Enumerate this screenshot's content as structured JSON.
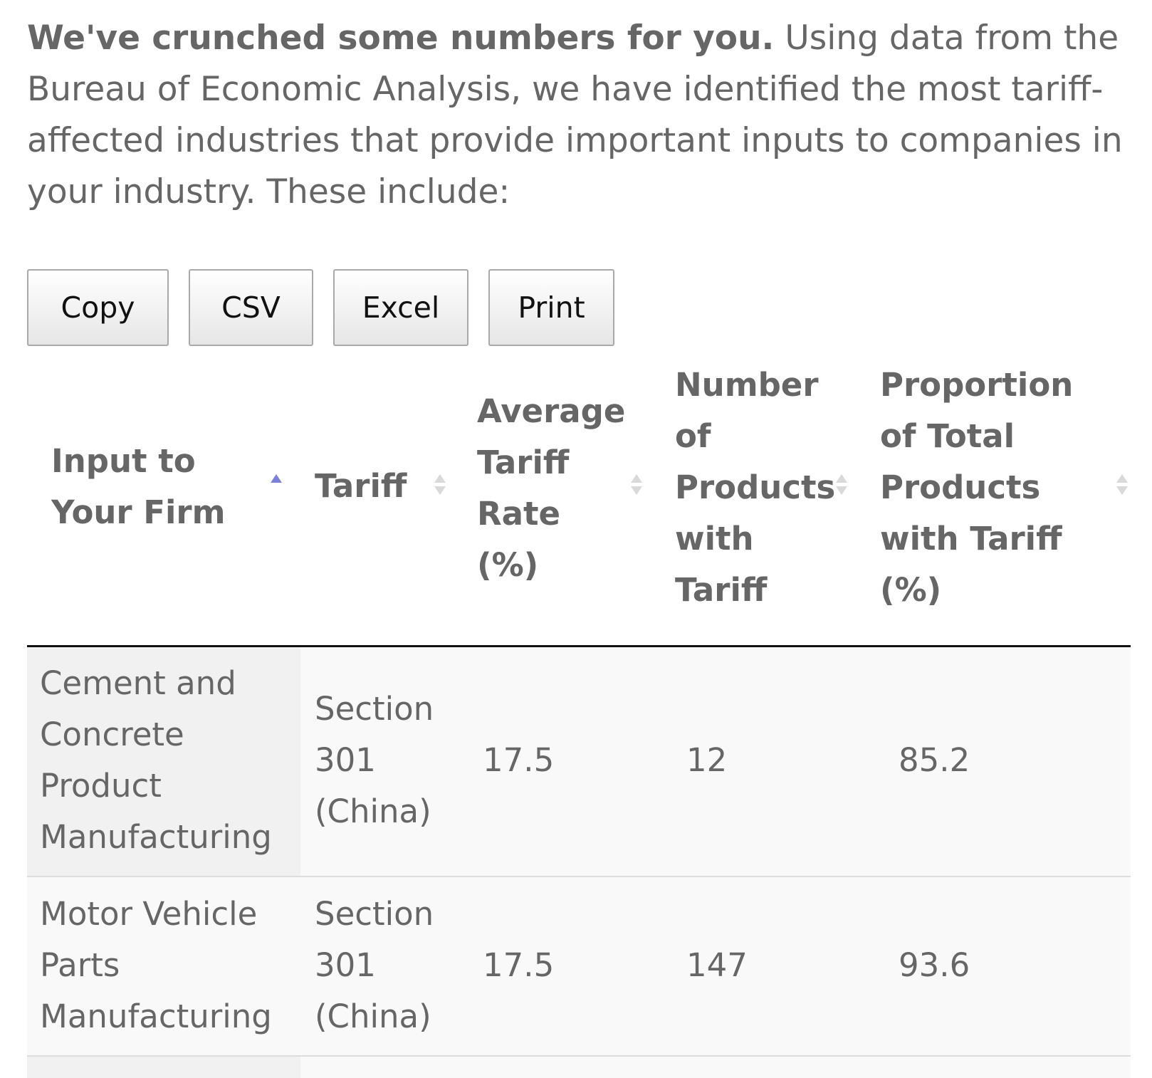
{
  "intro": {
    "bold": "We've crunched some numbers for you.",
    "lines": [
      " Using data from the",
      "Bureau of Economic Analysis, we have identified the most tariff-",
      "affected industries that provide important inputs to companies in",
      "your industry. These include:"
    ]
  },
  "buttons": {
    "copy": "Copy",
    "csv": "CSV",
    "excel": "Excel",
    "print": "Print"
  },
  "table": {
    "headers": [
      {
        "lines": [
          "Input to",
          "Your Firm"
        ],
        "sort": "ascending"
      },
      {
        "lines": [
          "Tariff"
        ],
        "sort": "none"
      },
      {
        "lines": [
          "Average",
          "Tariff",
          "Rate",
          "(%)"
        ],
        "sort": "none"
      },
      {
        "lines": [
          "Number",
          "of",
          "Products",
          "with",
          "Tariff"
        ],
        "sort": "none"
      },
      {
        "lines": [
          "Proportion",
          "of Total",
          "Products",
          "with Tariff",
          "(%)"
        ],
        "sort": "none"
      }
    ],
    "rows": [
      {
        "input": [
          "Cement and",
          "Concrete",
          "Product",
          "Manufacturing"
        ],
        "tariff": [
          "Section",
          "301",
          "(China)"
        ],
        "avg_rate": "17.5",
        "num_products": "12",
        "proportion": "85.2"
      },
      {
        "input": [
          "Motor Vehicle",
          "Parts",
          "Manufacturing"
        ],
        "tariff": [
          "Section",
          "301",
          "(China)"
        ],
        "avg_rate": "17.5",
        "num_products": "147",
        "proportion": "93.6"
      }
    ]
  }
}
